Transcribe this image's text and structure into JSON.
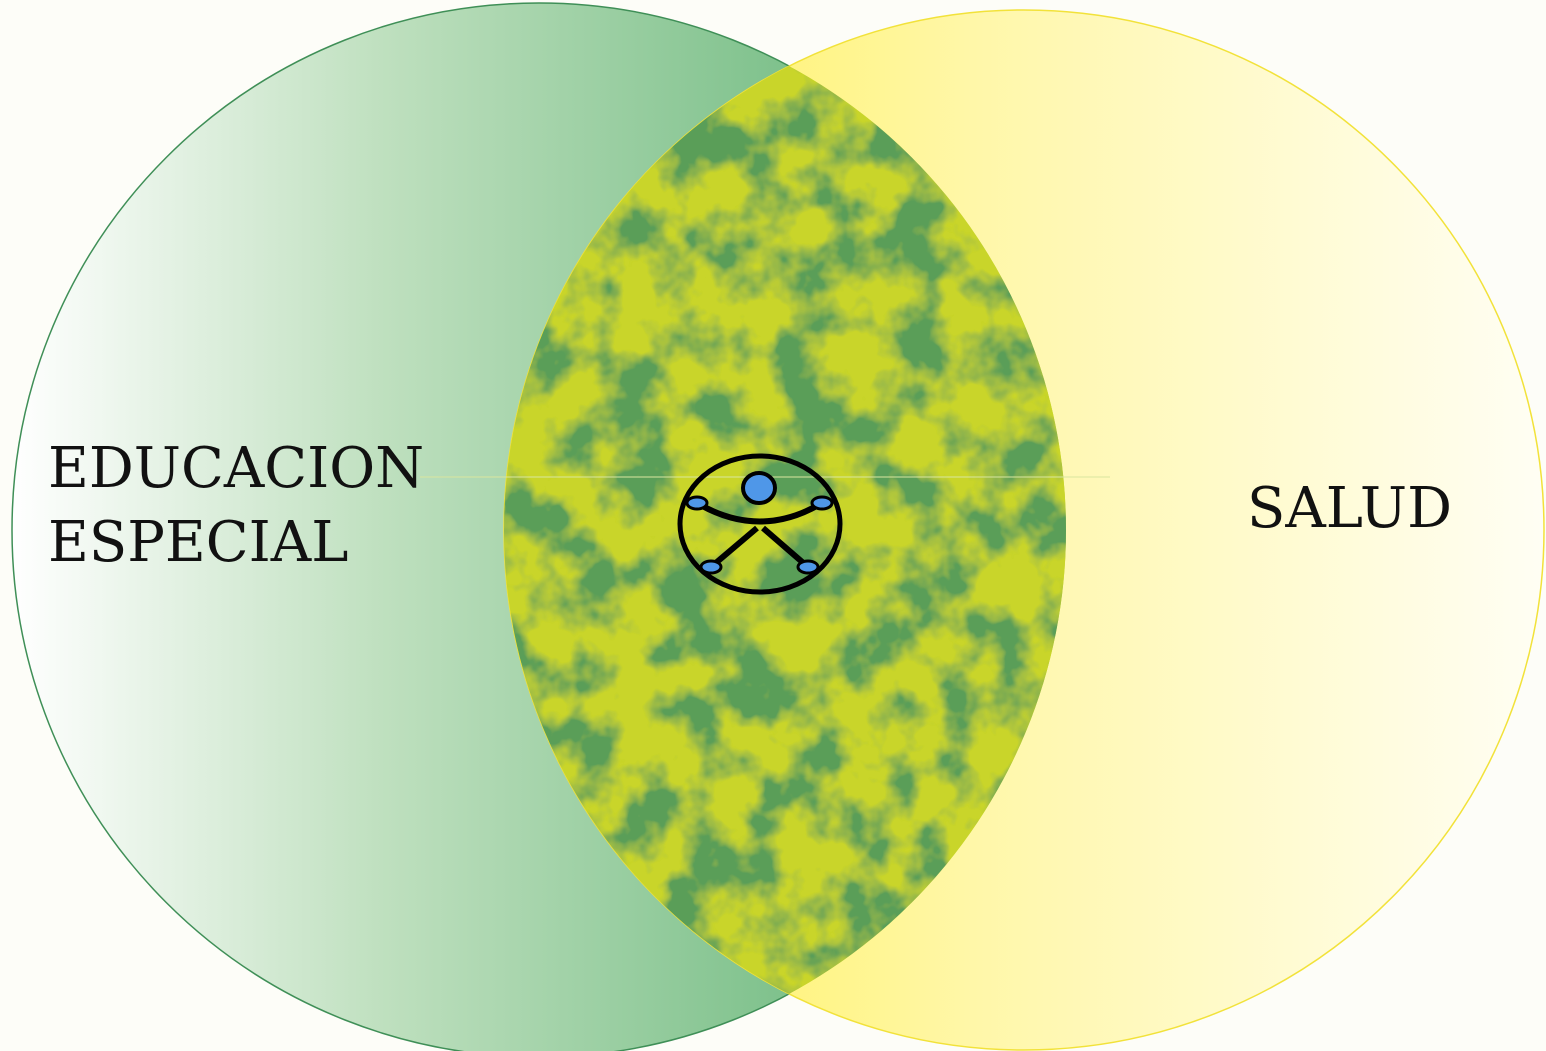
{
  "diagram": {
    "type": "venn",
    "left_set": {
      "label_lines": [
        "EDUCACION",
        "ESPECIAL"
      ],
      "color": "#4fa86a"
    },
    "right_set": {
      "label": "SALUD",
      "color": "#fff04a"
    },
    "intersection": {
      "icon": "universal-accessibility-icon",
      "colors": [
        "#c9d52a",
        "#5a9e58"
      ]
    }
  }
}
